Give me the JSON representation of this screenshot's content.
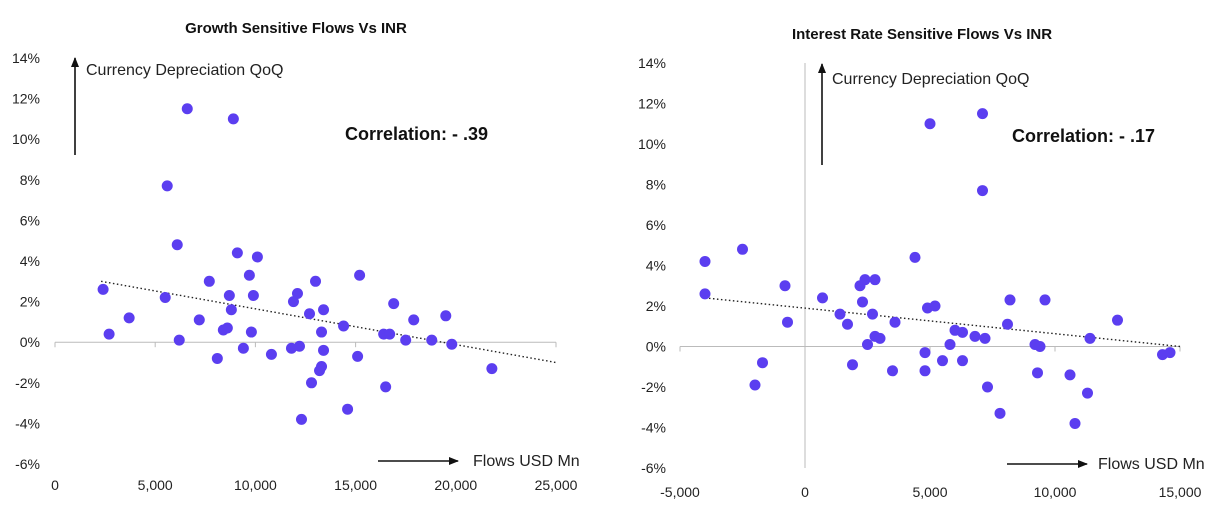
{
  "chart_data": [
    {
      "type": "scatter",
      "title": "Growth Sensitive Flows Vs INR",
      "xlabel": "Flows USD Mn",
      "ylabel": "Currency Depreciation QoQ",
      "annotation": "Correlation: - .39",
      "x_ticks": [
        "0",
        "5,000",
        "10,000",
        "15,000",
        "20,000",
        "25,000"
      ],
      "y_ticks": [
        "14%",
        "12%",
        "10%",
        "8%",
        "6%",
        "4%",
        "2%",
        "0%",
        "-2%",
        "-4%",
        "-6%"
      ],
      "xlim": [
        0,
        25000
      ],
      "ylim": [
        -6,
        14
      ],
      "trendline": {
        "style": "dotted",
        "x": [
          2300,
          25000
        ],
        "y": [
          3.0,
          -1.0
        ]
      },
      "marker_color": "#5b3ef0",
      "points": [
        [
          2400,
          2.6
        ],
        [
          2700,
          0.4
        ],
        [
          3700,
          1.2
        ],
        [
          5500,
          2.2
        ],
        [
          5600,
          7.7
        ],
        [
          6100,
          4.8
        ],
        [
          6200,
          0.1
        ],
        [
          6600,
          11.5
        ],
        [
          7200,
          1.1
        ],
        [
          7700,
          3.0
        ],
        [
          8100,
          -0.8
        ],
        [
          8400,
          0.6
        ],
        [
          8600,
          0.7
        ],
        [
          8700,
          2.3
        ],
        [
          8800,
          1.6
        ],
        [
          8900,
          11.0
        ],
        [
          9100,
          4.4
        ],
        [
          9400,
          -0.3
        ],
        [
          9700,
          3.3
        ],
        [
          9800,
          0.5
        ],
        [
          9900,
          2.3
        ],
        [
          10100,
          4.2
        ],
        [
          10800,
          -0.6
        ],
        [
          11800,
          -0.3
        ],
        [
          11900,
          2.0
        ],
        [
          12100,
          2.4
        ],
        [
          12200,
          -0.2
        ],
        [
          12300,
          -3.8
        ],
        [
          12700,
          1.4
        ],
        [
          12800,
          -2.0
        ],
        [
          13000,
          3.0
        ],
        [
          13200,
          -1.4
        ],
        [
          13300,
          -1.2
        ],
        [
          13300,
          0.5
        ],
        [
          13400,
          -0.4
        ],
        [
          13400,
          1.6
        ],
        [
          14400,
          0.8
        ],
        [
          14600,
          -3.3
        ],
        [
          15100,
          -0.7
        ],
        [
          15200,
          3.3
        ],
        [
          16400,
          0.4
        ],
        [
          16500,
          -2.2
        ],
        [
          16700,
          0.4
        ],
        [
          16900,
          1.9
        ],
        [
          17500,
          0.1
        ],
        [
          17900,
          1.1
        ],
        [
          18800,
          0.1
        ],
        [
          19500,
          1.3
        ],
        [
          19800,
          -0.1
        ],
        [
          21800,
          -1.3
        ]
      ]
    },
    {
      "type": "scatter",
      "title": "Interest Rate Sensitive Flows Vs INR",
      "xlabel": "Flows USD Mn",
      "ylabel": "Currency Depreciation QoQ",
      "annotation": "Correlation: - .17",
      "x_ticks": [
        "-5,000",
        "0",
        "5,000",
        "10,000",
        "15,000"
      ],
      "y_ticks": [
        "14%",
        "12%",
        "10%",
        "8%",
        "6%",
        "4%",
        "2%",
        "0%",
        "-2%",
        "-4%",
        "-6%"
      ],
      "xlim": [
        -5000,
        15000
      ],
      "ylim": [
        -6,
        14
      ],
      "trendline": {
        "style": "dotted",
        "x": [
          -4000,
          15000
        ],
        "y": [
          2.4,
          0.0
        ]
      },
      "marker_color": "#5b3ef0",
      "points": [
        [
          -4000,
          4.2
        ],
        [
          -4000,
          2.6
        ],
        [
          -2500,
          4.8
        ],
        [
          -2000,
          -1.9
        ],
        [
          -1700,
          -0.8
        ],
        [
          -800,
          3.0
        ],
        [
          -700,
          1.2
        ],
        [
          700,
          2.4
        ],
        [
          1400,
          1.6
        ],
        [
          1700,
          1.1
        ],
        [
          1900,
          -0.9
        ],
        [
          2200,
          3.0
        ],
        [
          2300,
          2.2
        ],
        [
          2400,
          3.3
        ],
        [
          2500,
          0.1
        ],
        [
          2700,
          1.6
        ],
        [
          2800,
          3.3
        ],
        [
          2800,
          0.5
        ],
        [
          3000,
          0.4
        ],
        [
          3500,
          -1.2
        ],
        [
          3600,
          1.2
        ],
        [
          4400,
          4.4
        ],
        [
          4800,
          -0.3
        ],
        [
          4800,
          -1.2
        ],
        [
          4900,
          1.9
        ],
        [
          5000,
          11.0
        ],
        [
          5200,
          2.0
        ],
        [
          5500,
          -0.7
        ],
        [
          5800,
          0.1
        ],
        [
          6000,
          0.8
        ],
        [
          6300,
          -0.7
        ],
        [
          6300,
          0.7
        ],
        [
          6800,
          0.5
        ],
        [
          7100,
          11.5
        ],
        [
          7100,
          7.7
        ],
        [
          7200,
          0.4
        ],
        [
          7300,
          -2.0
        ],
        [
          7800,
          -3.3
        ],
        [
          8100,
          1.1
        ],
        [
          8200,
          2.3
        ],
        [
          9200,
          0.1
        ],
        [
          9300,
          -1.3
        ],
        [
          9400,
          0.0
        ],
        [
          9600,
          2.3
        ],
        [
          10600,
          -1.4
        ],
        [
          10800,
          -3.8
        ],
        [
          11300,
          -2.3
        ],
        [
          11400,
          0.4
        ],
        [
          12500,
          1.3
        ],
        [
          14300,
          -0.4
        ],
        [
          14600,
          -0.3
        ]
      ]
    }
  ]
}
